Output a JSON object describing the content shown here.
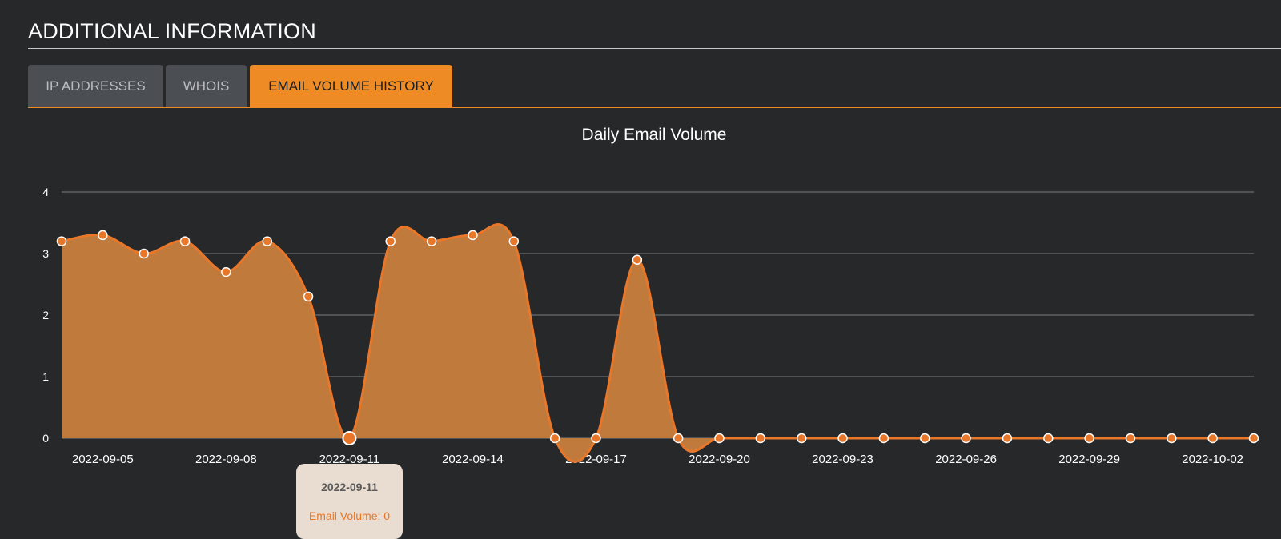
{
  "section": {
    "title": "ADDITIONAL INFORMATION"
  },
  "tabs": [
    {
      "label": "IP ADDRESSES",
      "active": false
    },
    {
      "label": "WHOIS",
      "active": false
    },
    {
      "label": "EMAIL VOLUME HISTORY",
      "active": true
    }
  ],
  "colors": {
    "accent": "#ef8b25",
    "area_fill": "#c07a3c",
    "line": "#e8772a",
    "background": "#27282a"
  },
  "tooltip": {
    "date": "2022-09-11",
    "label": "Email Volume: 0"
  },
  "chart_data": {
    "type": "area",
    "title": "Daily Email Volume",
    "xlabel": "",
    "ylabel": "",
    "ylim": [
      0,
      4
    ],
    "yticks": [
      0,
      1,
      2,
      3,
      4
    ],
    "grid": true,
    "x": [
      "2022-09-04",
      "2022-09-05",
      "2022-09-06",
      "2022-09-07",
      "2022-09-08",
      "2022-09-09",
      "2022-09-10",
      "2022-09-11",
      "2022-09-12",
      "2022-09-13",
      "2022-09-14",
      "2022-09-15",
      "2022-09-16",
      "2022-09-17",
      "2022-09-18",
      "2022-09-19",
      "2022-09-20",
      "2022-09-21",
      "2022-09-22",
      "2022-09-23",
      "2022-09-24",
      "2022-09-25",
      "2022-09-26",
      "2022-09-27",
      "2022-09-28",
      "2022-09-29",
      "2022-09-30",
      "2022-10-01",
      "2022-10-02",
      "2022-10-03"
    ],
    "xtick_labels": [
      "2022-09-05",
      "2022-09-08",
      "2022-09-11",
      "2022-09-14",
      "2022-09-17",
      "2022-09-20",
      "2022-09-23",
      "2022-09-26",
      "2022-09-29",
      "2022-10-02"
    ],
    "series": [
      {
        "values": [
          3.2,
          3.3,
          3.0,
          3.2,
          2.7,
          3.2,
          2.3,
          0,
          3.2,
          3.2,
          3.3,
          3.2,
          0,
          0,
          2.9,
          0,
          0,
          0,
          0,
          0,
          0,
          0,
          0,
          0,
          0,
          0,
          0,
          0,
          0,
          0
        ]
      }
    ],
    "highlight_index": 7
  }
}
